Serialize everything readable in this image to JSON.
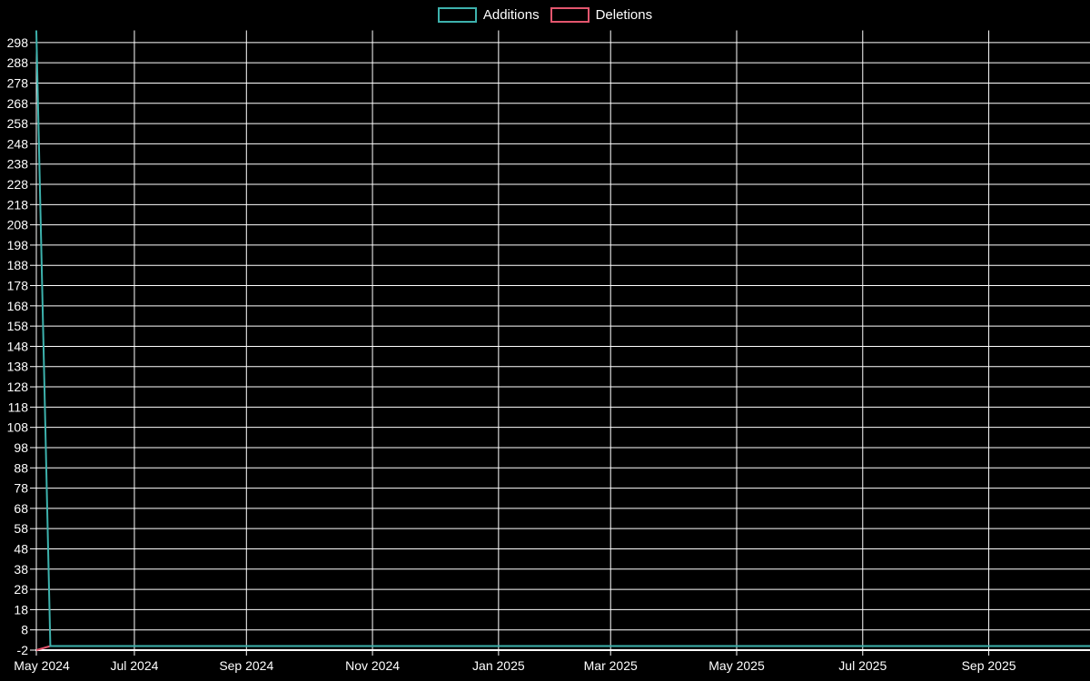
{
  "page": {
    "background_color": "#000000",
    "grid_color": "#ffffff",
    "text_color": "#ffffff"
  },
  "legend": {
    "position": "top-center",
    "items": [
      {
        "label": "Additions",
        "color": "#3db2ad"
      },
      {
        "label": "Deletions",
        "color": "#e4566e"
      }
    ]
  },
  "chart_data": {
    "type": "line",
    "title": "",
    "xlabel": "",
    "ylabel": "",
    "grid": true,
    "legend_position": "top-center",
    "x_unit": "week",
    "weeks_total": 77,
    "ylim": [
      -2,
      304
    ],
    "y_ticks": [
      -2,
      8,
      18,
      28,
      38,
      48,
      58,
      68,
      78,
      88,
      98,
      108,
      118,
      128,
      138,
      148,
      158,
      168,
      178,
      188,
      198,
      208,
      218,
      228,
      238,
      248,
      258,
      268,
      278,
      288,
      298
    ],
    "x_ticks": [
      {
        "label": "May 2024",
        "week": 0
      },
      {
        "label": "Jul 2024",
        "week": 7
      },
      {
        "label": "Sep 2024",
        "week": 15
      },
      {
        "label": "Nov 2024",
        "week": 24
      },
      {
        "label": "Jan 2025",
        "week": 33
      },
      {
        "label": "Mar 2025",
        "week": 41
      },
      {
        "label": "May 2025",
        "week": 50
      },
      {
        "label": "Jul 2025",
        "week": 59
      },
      {
        "label": "Sep 2025",
        "week": 68
      }
    ],
    "series": [
      {
        "name": "Additions",
        "color": "#3db2ad",
        "values": [
          304,
          0,
          0,
          0,
          0,
          0,
          0,
          0,
          0,
          0,
          0,
          0,
          0,
          0,
          0,
          0,
          0,
          0,
          0,
          0,
          0,
          0,
          0,
          0,
          0,
          0,
          0,
          0,
          0,
          0,
          0,
          0,
          0,
          0,
          0,
          0,
          0,
          0,
          0,
          0,
          0,
          0,
          0,
          0,
          0,
          0,
          0,
          0,
          0,
          0,
          0,
          0,
          0,
          0,
          0,
          0,
          0,
          0,
          0,
          0,
          0,
          0,
          0,
          0,
          0,
          0,
          0,
          0,
          0,
          0,
          0,
          0,
          0,
          0,
          0,
          0,
          0
        ]
      },
      {
        "name": "Deletions",
        "color": "#e4566e",
        "values": [
          -2,
          0,
          0,
          0,
          0,
          0,
          0,
          0,
          0,
          0,
          0,
          0,
          0,
          0,
          0,
          0,
          0,
          0,
          0,
          0,
          0,
          0,
          0,
          0,
          0,
          0,
          0,
          0,
          0,
          0,
          0,
          0,
          0,
          0,
          0,
          0,
          0,
          0,
          0,
          0,
          0,
          0,
          0,
          0,
          0,
          0,
          0,
          0,
          0,
          0,
          0,
          0,
          0,
          0,
          0,
          0,
          0,
          0,
          0,
          0,
          0,
          0,
          0,
          0,
          0,
          0,
          0,
          0,
          0,
          0,
          0,
          0,
          0,
          0,
          0,
          0,
          0
        ]
      }
    ]
  }
}
